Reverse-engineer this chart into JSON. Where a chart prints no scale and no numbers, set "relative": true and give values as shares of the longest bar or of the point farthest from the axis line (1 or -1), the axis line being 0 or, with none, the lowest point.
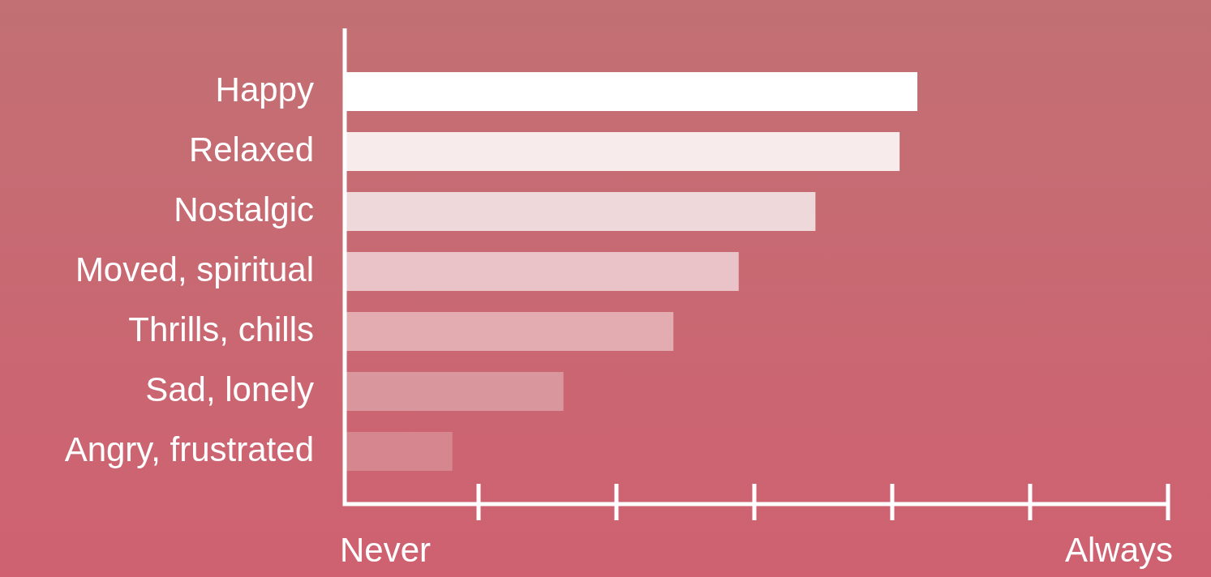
{
  "chart_data": {
    "type": "bar",
    "orientation": "horizontal",
    "relative": true,
    "categories": [
      "Happy",
      "Relaxed",
      "Nostalgic",
      "Moved, spiritual",
      "Thrills, chills",
      "Sad, lonely",
      "Angry, frustrated"
    ],
    "values": [
      1,
      0.969,
      0.822,
      0.688,
      0.574,
      0.382,
      0.188
    ],
    "colors": [
      "#ffffff",
      "#f7ebeb",
      "#eed8da",
      "#e9c3c7",
      "#e2acb1",
      "#d9969c",
      "#d6868e"
    ],
    "annotations": [
      "Never",
      "Always"
    ],
    "legend": false
  }
}
